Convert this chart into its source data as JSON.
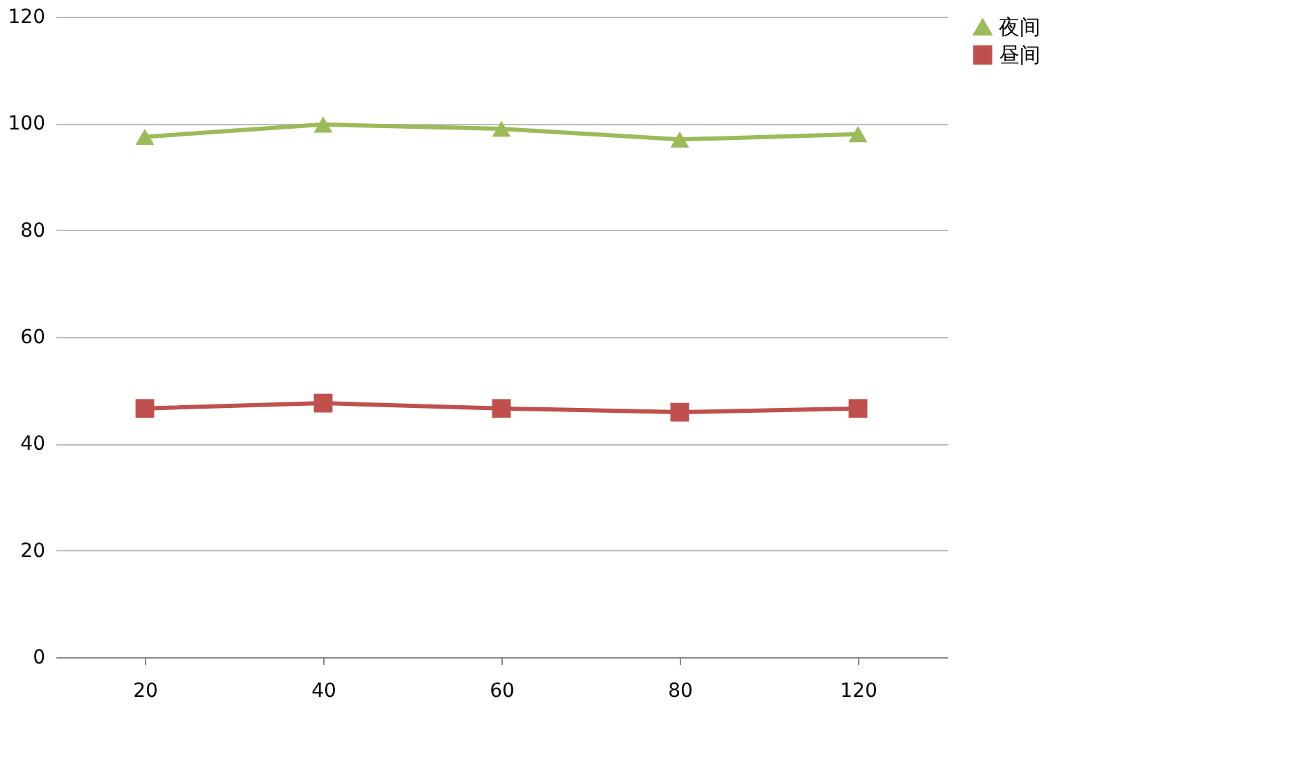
{
  "chart_data": {
    "type": "line",
    "categories": [
      "20",
      "40",
      "60",
      "80",
      "120"
    ],
    "series": [
      {
        "name": "夜间",
        "color": "#9bbb59",
        "marker": "triangle",
        "values": [
          97.5,
          99.8,
          99,
          97,
          98
        ]
      },
      {
        "name": "昼间",
        "color": "#c0504d",
        "marker": "square",
        "values": [
          46.6,
          47.6,
          46.6,
          45.9,
          46.6
        ]
      }
    ],
    "ylim": [
      0,
      120
    ],
    "yticks": [
      0,
      20,
      40,
      60,
      80,
      100,
      120
    ],
    "grid": "y",
    "legend": "right",
    "line_style": "solid"
  }
}
